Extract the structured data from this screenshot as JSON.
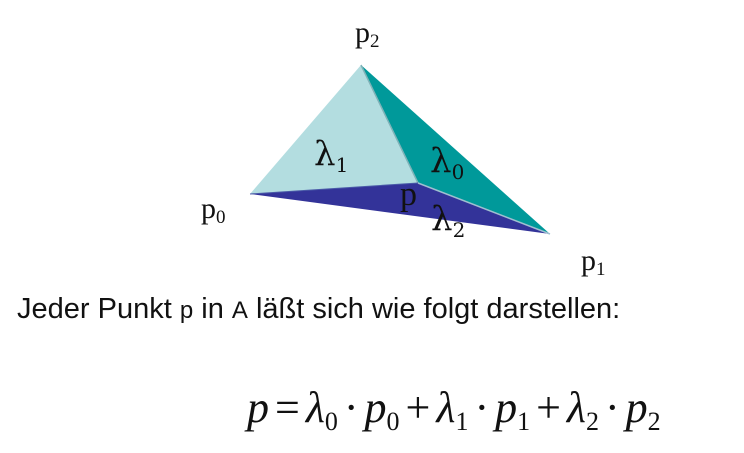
{
  "diagram": {
    "vertices": {
      "p0": {
        "base": "p",
        "sub": "0"
      },
      "p1": {
        "base": "p",
        "sub": "1"
      },
      "p2": {
        "base": "p",
        "sub": "2"
      },
      "p": {
        "base": "p"
      }
    },
    "regions": {
      "lambda0": {
        "base": "λ",
        "sub": "0",
        "color": "#00999a"
      },
      "lambda1": {
        "base": "λ",
        "sub": "1",
        "color": "#b3dde0"
      },
      "lambda2": {
        "base": "λ",
        "sub": "2",
        "color": "#333399"
      }
    }
  },
  "caption": {
    "part1": "Jeder Punkt ",
    "p": "p",
    "part2": " in ",
    "A": "A",
    "part3": " läßt sich wie folgt darstellen:"
  },
  "formula": {
    "lhs": "p",
    "eq": "=",
    "terms": [
      {
        "lambda": "λ",
        "lsub": "0",
        "dot": "·",
        "p": "p",
        "psub": "0"
      },
      {
        "lambda": "λ",
        "lsub": "1",
        "dot": "·",
        "p": "p",
        "psub": "1"
      },
      {
        "lambda": "λ",
        "lsub": "2",
        "dot": "·",
        "p": "p",
        "psub": "2"
      }
    ],
    "plus": "+"
  }
}
